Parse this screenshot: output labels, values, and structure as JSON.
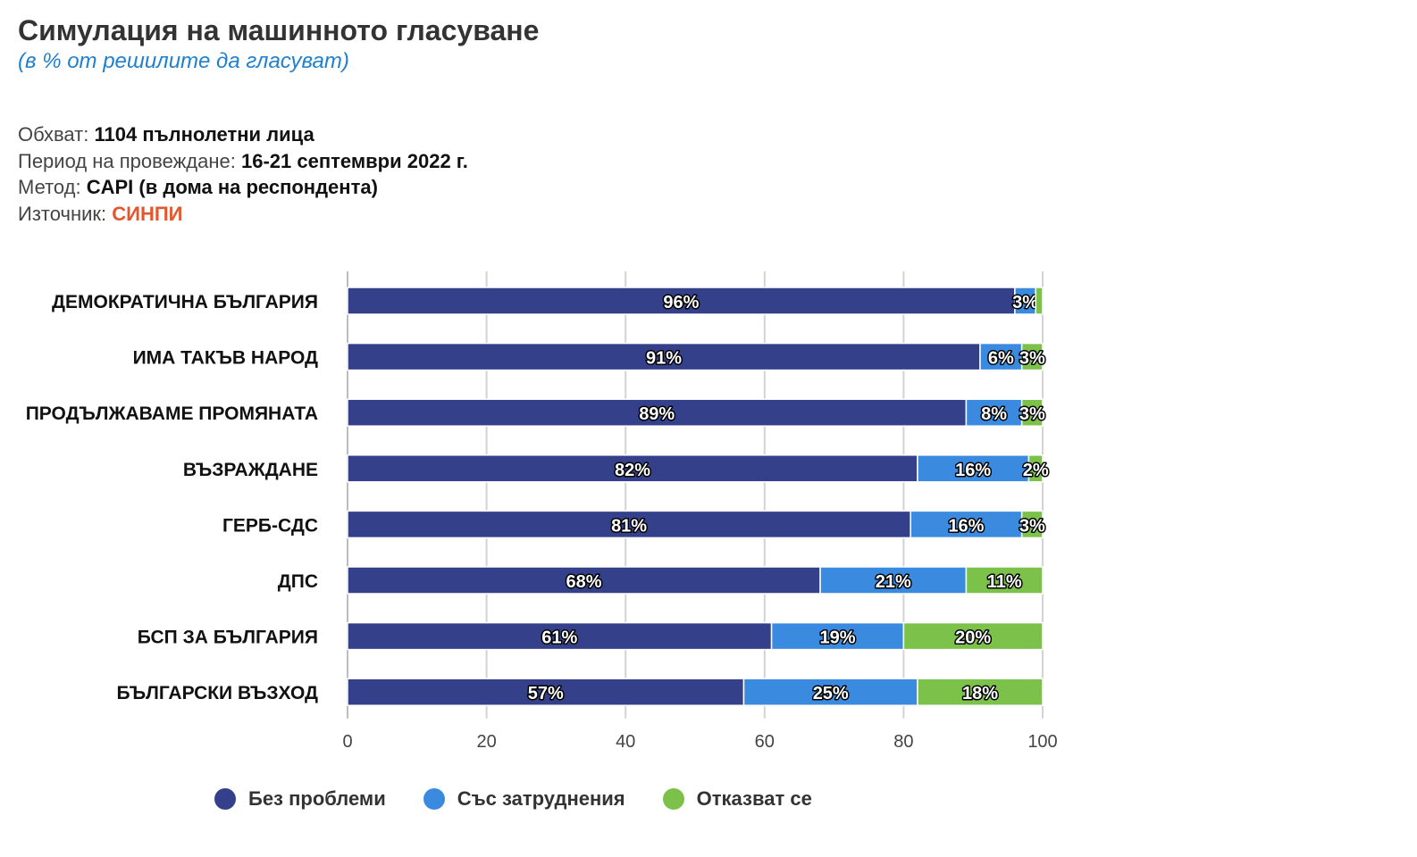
{
  "header": {
    "title": "Симулация на машинното гласуване",
    "subtitle": "(в % от решилите да гласуват)"
  },
  "meta": {
    "scope_label": "Обхват:",
    "scope_value": "1104 пълнолетни лица",
    "period_label": "Период на провеждане:",
    "period_value": "16-21 септември 2022 г.",
    "method_label": "Метод:",
    "method_value": "CAPI (в дома на респондента)",
    "source_label": "Източник:",
    "source_value": "СИНПИ"
  },
  "colors": {
    "subtitle": "#1f7fd0",
    "source": "#e4572e",
    "series": [
      "#34418a",
      "#3a8be0",
      "#7cc14a"
    ],
    "grid": "#d3d3d3"
  },
  "chart_data": {
    "type": "bar",
    "orientation": "horizontal",
    "stacked": true,
    "categories": [
      "ДЕМОКРАТИЧНА БЪЛГАРИЯ",
      "ИМА ТАКЪВ НАРОД",
      "ПРОДЪЛЖАВАМЕ ПРОМЯНАТА",
      "ВЪЗРАЖДАНЕ",
      "ГЕРБ-СДС",
      "ДПС",
      "БСП ЗА БЪЛГАРИЯ",
      "БЪЛГАРСКИ ВЪЗХОД"
    ],
    "series": [
      {
        "name": "Без проблеми",
        "values": [
          96,
          91,
          89,
          82,
          81,
          68,
          61,
          57
        ],
        "labels": [
          "96%",
          "91%",
          "89%",
          "82%",
          "81%",
          "68%",
          "61%",
          "57%"
        ]
      },
      {
        "name": "Със затруднения",
        "values": [
          3,
          6,
          8,
          16,
          16,
          21,
          19,
          25
        ],
        "labels": [
          "3%",
          "6%",
          "8%",
          "16%",
          "16%",
          "21%",
          "19%",
          "25%"
        ]
      },
      {
        "name": "Отказват се",
        "values": [
          1,
          3,
          3,
          2,
          3,
          11,
          20,
          18
        ],
        "labels": [
          "",
          "3%",
          "3%",
          "2%",
          "3%",
          "11%",
          "20%",
          "18%"
        ]
      }
    ],
    "xlim": [
      0,
      100
    ],
    "xticks": [
      0,
      20,
      40,
      60,
      80,
      100
    ],
    "grid": true,
    "legend_position": "bottom"
  }
}
